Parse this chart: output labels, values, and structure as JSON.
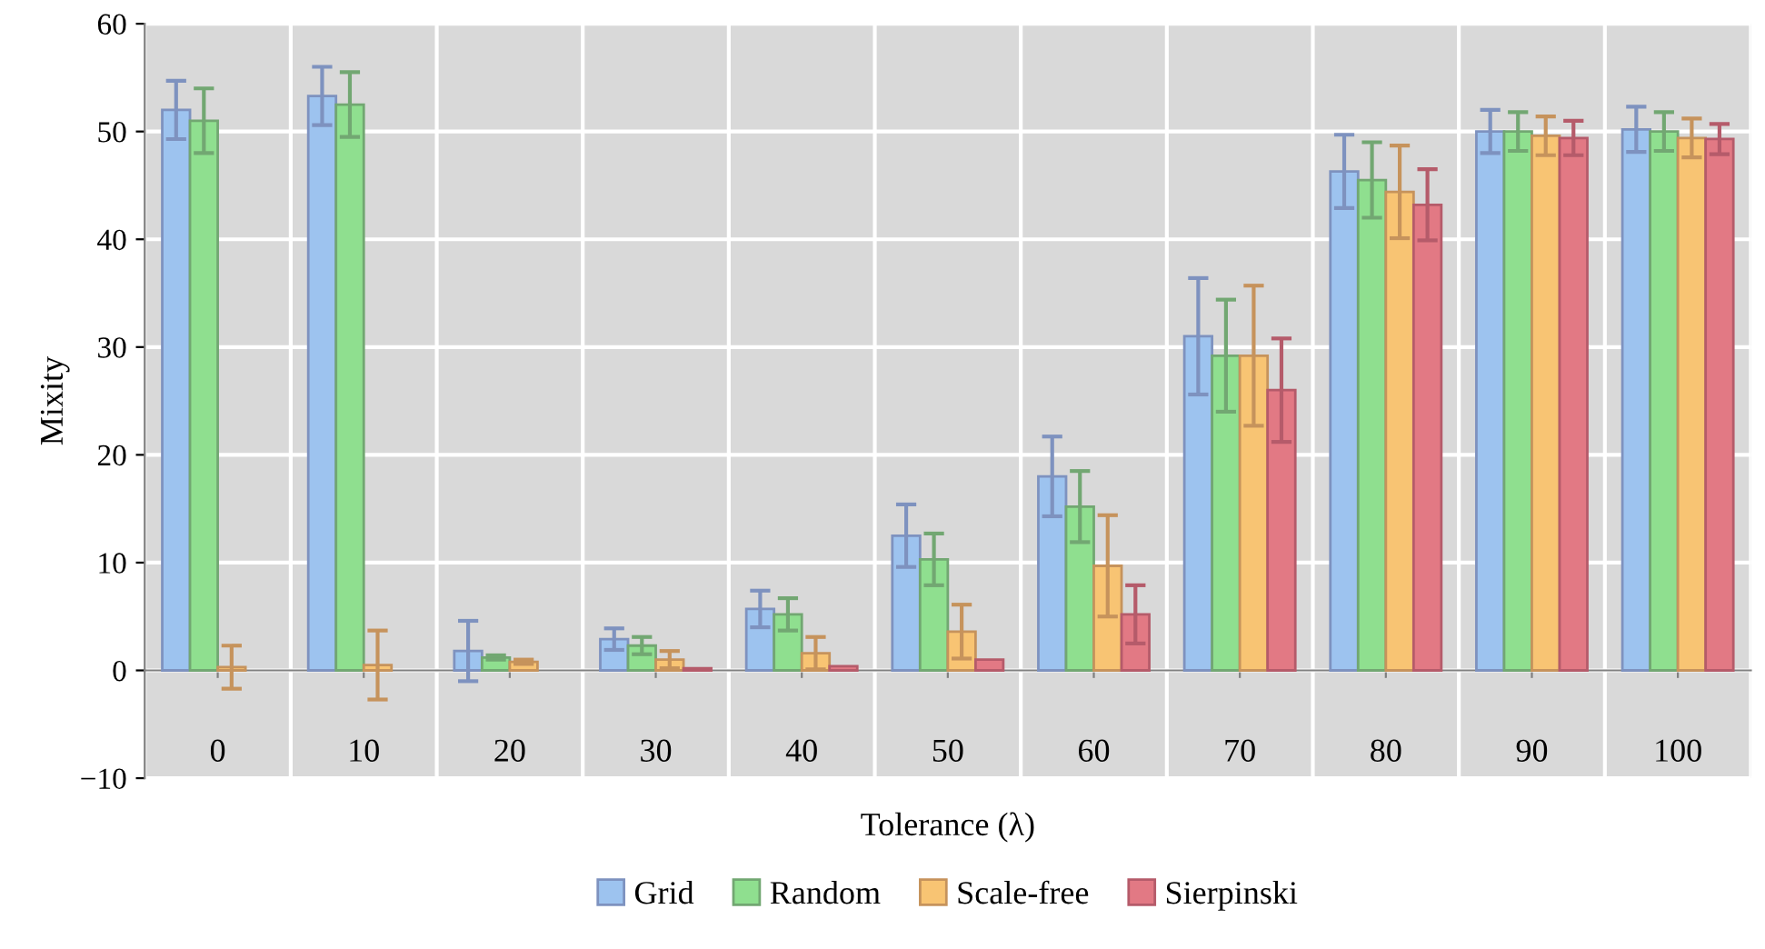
{
  "chart_data": {
    "type": "bar",
    "xlabel": "Tolerance (λ)",
    "ylabel": "Mixity",
    "categories": [
      "0",
      "10",
      "20",
      "30",
      "40",
      "50",
      "60",
      "70",
      "80",
      "90",
      "100"
    ],
    "ylim": [
      -10,
      60
    ],
    "yticks": [
      -10,
      0,
      10,
      20,
      30,
      40,
      50,
      60
    ],
    "grid": true,
    "legend": "bottom",
    "series": [
      {
        "name": "Grid",
        "color": "#9dc3ef",
        "values": [
          52,
          53.3,
          1.8,
          2.9,
          5.7,
          12.5,
          18,
          31,
          46.3,
          50,
          50.2
        ],
        "errors": [
          2.7,
          2.7,
          2.8,
          1,
          1.7,
          2.9,
          3.7,
          5.4,
          3.4,
          2,
          2.1
        ]
      },
      {
        "name": "Random",
        "color": "#8fdf8f",
        "values": [
          51,
          52.5,
          1.2,
          2.3,
          5.2,
          10.3,
          15.2,
          29.2,
          45.5,
          50,
          50
        ],
        "errors": [
          3,
          3,
          0.2,
          0.8,
          1.5,
          2.4,
          3.3,
          5.2,
          3.5,
          1.8,
          1.8
        ]
      },
      {
        "name": "Scale-free",
        "color": "#f8c473",
        "values": [
          0.3,
          0.5,
          0.8,
          1,
          1.6,
          3.6,
          9.7,
          29.2,
          44.4,
          49.6,
          49.4
        ],
        "errors": [
          2,
          3.2,
          0.2,
          0.8,
          1.5,
          2.5,
          4.7,
          6.5,
          4.3,
          1.8,
          1.8
        ]
      },
      {
        "name": "Sierpinski",
        "color": "#e27984",
        "values": [
          null,
          null,
          null,
          0.2,
          0.4,
          1,
          5.2,
          26,
          43.2,
          49.4,
          49.3
        ],
        "errors": [
          null,
          null,
          null,
          null,
          null,
          null,
          2.7,
          4.8,
          3.3,
          1.6,
          1.4
        ]
      }
    ]
  }
}
